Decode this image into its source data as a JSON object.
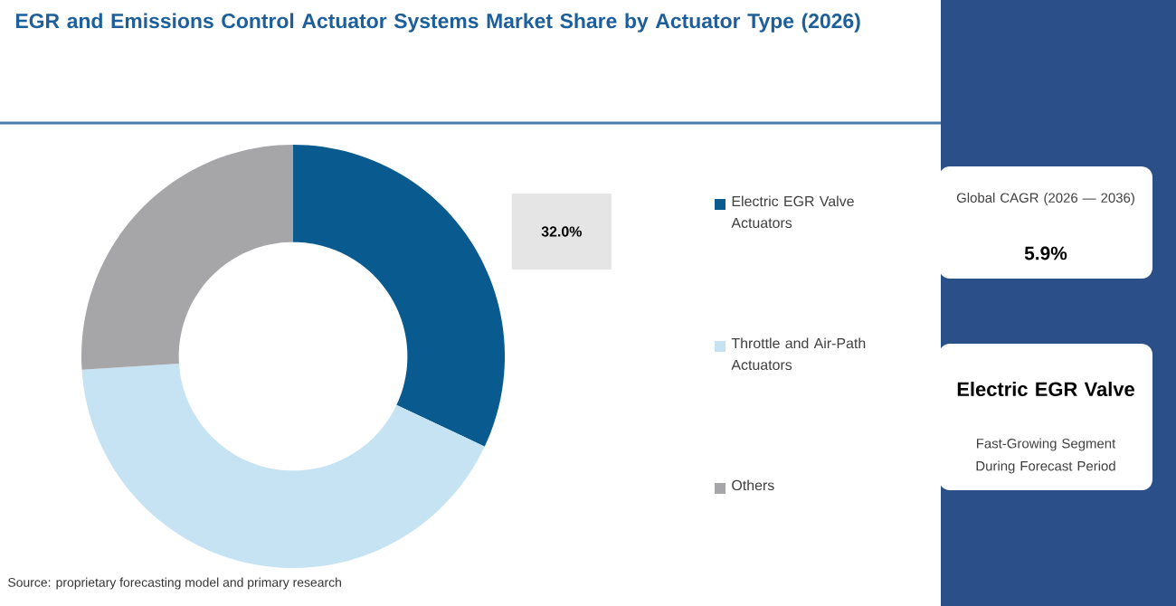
{
  "chart_data": {
    "type": "donut",
    "title": "EGR and Emissions Control Actuator Systems Market Share by Actuator Type (2026)",
    "categories": [
      "Electric EGR Valve Actuators",
      "Throttle and Air-Path Actuators",
      "Others"
    ],
    "values": [
      32.0,
      42.0,
      26.0
    ],
    "colors": [
      "#085a8f",
      "#c5e3f3",
      "#a6a5a8"
    ],
    "value_labels": [
      "32.0%",
      null,
      null
    ],
    "legend": "right",
    "annotations": [
      "Source: proprietary forecasting model and primary research",
      "Global CAGR (2026 — 2036)",
      "5.9%",
      "Electric EGR Valve",
      "Fast-Growing Segment During Forecast Period"
    ]
  }
}
